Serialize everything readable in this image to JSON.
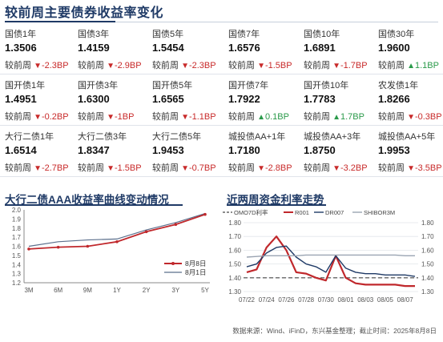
{
  "title": "较前周主要债券收益率变化",
  "change_label": "较前周",
  "bonds": [
    [
      {
        "name": "国债1年",
        "value": "1.3506",
        "dir": "down",
        "change": "-2.3BP"
      },
      {
        "name": "国债3年",
        "value": "1.4159",
        "dir": "down",
        "change": "-2.9BP"
      },
      {
        "name": "国债5年",
        "value": "1.5454",
        "dir": "down",
        "change": "-2.3BP"
      },
      {
        "name": "国债7年",
        "value": "1.6576",
        "dir": "down",
        "change": "-1.5BP"
      },
      {
        "name": "国债10年",
        "value": "1.6891",
        "dir": "down",
        "change": "-1.7BP"
      },
      {
        "name": "国债30年",
        "value": "1.9600",
        "dir": "up",
        "change": "1.1BP"
      }
    ],
    [
      {
        "name": "国开债1年",
        "value": "1.4951",
        "dir": "down",
        "change": "-0.2BP"
      },
      {
        "name": "国开债3年",
        "value": "1.6300",
        "dir": "down",
        "change": "-1BP"
      },
      {
        "name": "国开债5年",
        "value": "1.6565",
        "dir": "down",
        "change": "-1.1BP"
      },
      {
        "name": "国开债7年",
        "value": "1.7922",
        "dir": "up",
        "change": "0.1BP"
      },
      {
        "name": "国开债10年",
        "value": "1.7783",
        "dir": "up",
        "change": "1.7BP"
      },
      {
        "name": "农发债1年",
        "value": "1.8266",
        "dir": "down",
        "change": "-0.3BP"
      }
    ],
    [
      {
        "name": "大行二债1年",
        "value": "1.6514",
        "dir": "down",
        "change": "-2.7BP"
      },
      {
        "name": "大行二债3年",
        "value": "1.8347",
        "dir": "down",
        "change": "-1.5BP"
      },
      {
        "name": "大行二债5年",
        "value": "1.9453",
        "dir": "down",
        "change": "-0.7BP"
      },
      {
        "name": "城投债AA+1年",
        "value": "1.7180",
        "dir": "down",
        "change": "-2.8BP"
      },
      {
        "name": "城投债AA+3年",
        "value": "1.8750",
        "dir": "down",
        "change": "-3.2BP"
      },
      {
        "name": "城投债AA+5年",
        "value": "1.9953",
        "dir": "down",
        "change": "-3.5BP"
      }
    ]
  ],
  "colors": {
    "title": "#1f3a66",
    "down": "#c82a2a",
    "up": "#2a9a4a"
  },
  "source": "数据来源：Wind、iFinD，东兴基金整理；截止时间：2025年8月8日",
  "chart_data": [
    {
      "type": "line",
      "title": "大行二债AAA收益率曲线变动情况",
      "x": [
        "3M",
        "6M",
        "9M",
        "1Y",
        "2Y",
        "3Y",
        "5Y"
      ],
      "ylim": [
        1.2,
        2.0
      ],
      "yticks": [
        1.2,
        1.3,
        1.4,
        1.5,
        1.6,
        1.7,
        1.8,
        1.9,
        2.0
      ],
      "grid": false,
      "legend": "bottom-right",
      "series": [
        {
          "name": "8月8日",
          "color": "#c0282c",
          "values": [
            1.57,
            1.59,
            1.6,
            1.65,
            1.76,
            1.84,
            1.95
          ]
        },
        {
          "name": "8月1日",
          "color": "#5b6f8c",
          "values": [
            1.6,
            1.65,
            1.67,
            1.68,
            1.78,
            1.86,
            1.96
          ]
        }
      ]
    },
    {
      "type": "line",
      "title": "近两周资金利率走势",
      "x_ticks": [
        "07/22",
        "07/24",
        "07/26",
        "07/28",
        "07/30",
        "08/01",
        "08/03",
        "08/05",
        "08/07"
      ],
      "ylim": [
        1.3,
        1.8
      ],
      "yticks": [
        1.3,
        1.4,
        1.5,
        1.6,
        1.7,
        1.8
      ],
      "grid": true,
      "legend": "top",
      "series": [
        {
          "name": "OMO7D利率",
          "color": "#666666",
          "style": "dashed",
          "x": [
            0,
            17
          ],
          "values": [
            1.4,
            1.4
          ]
        },
        {
          "name": "R001",
          "color": "#c0282c",
          "x": [
            0,
            1,
            2,
            3,
            4,
            5,
            6,
            7,
            8,
            9,
            10,
            11,
            12,
            13,
            14,
            15,
            16,
            17
          ],
          "values": [
            1.44,
            1.46,
            1.62,
            1.7,
            1.6,
            1.44,
            1.43,
            1.4,
            1.38,
            1.56,
            1.4,
            1.36,
            1.35,
            1.35,
            1.35,
            1.35,
            1.34,
            1.34
          ]
        },
        {
          "name": "DR007",
          "color": "#1f3a66",
          "x": [
            0,
            1,
            2,
            3,
            4,
            5,
            6,
            7,
            8,
            9,
            10,
            11,
            12,
            13,
            14,
            15,
            16,
            17
          ],
          "values": [
            1.48,
            1.5,
            1.58,
            1.62,
            1.63,
            1.55,
            1.5,
            1.48,
            1.44,
            1.56,
            1.47,
            1.44,
            1.43,
            1.43,
            1.42,
            1.42,
            1.42,
            1.41
          ]
        },
        {
          "name": "SHIBOR3M",
          "color": "#9aa4b2",
          "x": [
            0,
            1,
            2,
            3,
            4,
            5,
            6,
            7,
            8,
            9,
            10,
            11,
            12,
            13,
            14,
            15,
            16,
            17
          ],
          "values": [
            1.55,
            1.555,
            1.56,
            1.56,
            1.56,
            1.56,
            1.565,
            1.565,
            1.565,
            1.565,
            1.565,
            1.565,
            1.565,
            1.565,
            1.565,
            1.565,
            1.56,
            1.56
          ]
        }
      ]
    }
  ]
}
